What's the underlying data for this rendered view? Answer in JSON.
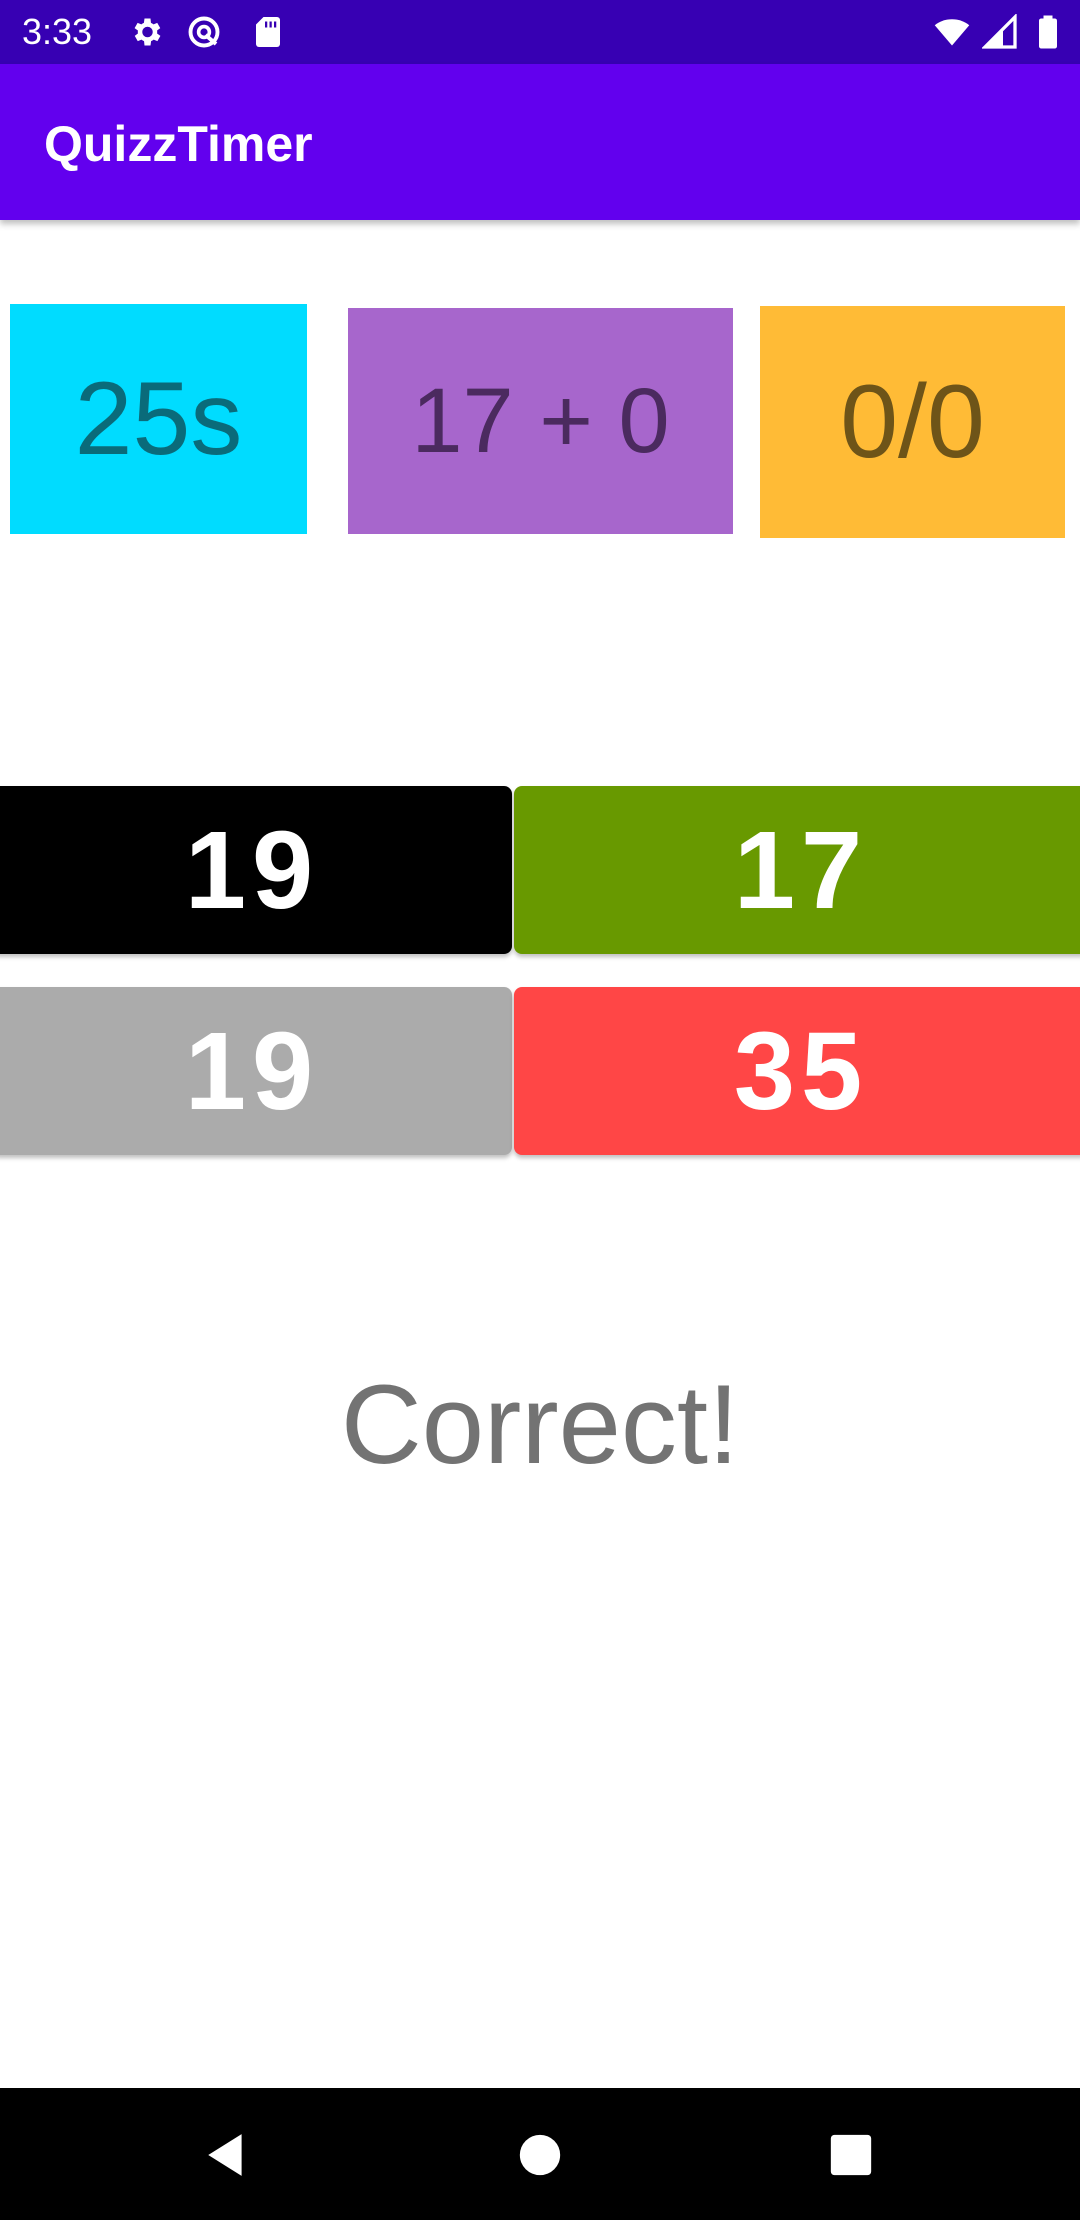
{
  "status_bar": {
    "time": "3:33",
    "icons_left": [
      "gear-icon",
      "location-off-icon",
      "sd-card-icon"
    ],
    "icons_right": [
      "wifi-icon",
      "signal-icon",
      "battery-icon"
    ],
    "color": "#3700b3"
  },
  "app_bar": {
    "title": "QuizzTimer",
    "color": "#6200ee"
  },
  "info": {
    "timer": "25s",
    "question": "17 + 0",
    "score": "0/0"
  },
  "answers": [
    {
      "label": "19",
      "color": "#000000"
    },
    {
      "label": "17",
      "color": "#689900"
    },
    {
      "label": "19",
      "color": "#ababab"
    },
    {
      "label": "35",
      "color": "#ff4646"
    }
  ],
  "result": {
    "text": "Correct!"
  },
  "nav_bar": {
    "buttons": [
      "back-icon",
      "home-icon",
      "recents-icon"
    ]
  }
}
